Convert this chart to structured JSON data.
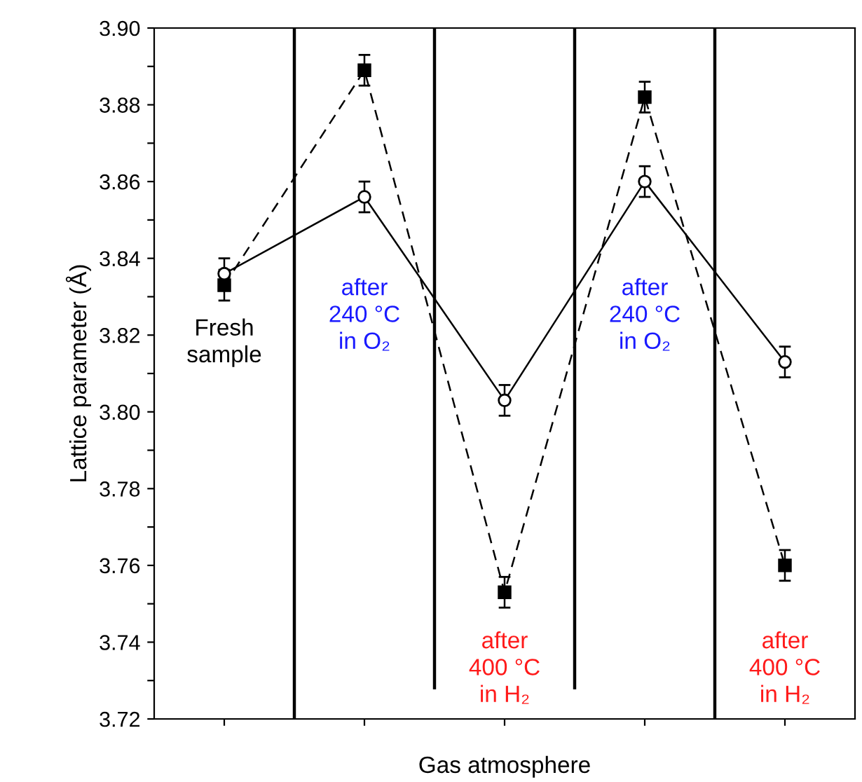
{
  "chart_data": {
    "type": "line",
    "xlabel": "Gas atmosphere",
    "ylabel": "Lattice parameter (Å)",
    "categories": [
      null,
      null,
      null,
      null,
      null
    ],
    "series": [
      {
        "color": "#000000",
        "marker": "square",
        "line_style": "dashed",
        "values": [
          3.833,
          3.889,
          3.753,
          3.882,
          3.76
        ],
        "errors": [
          0.004,
          0.004,
          0.004,
          0.004,
          0.004
        ]
      },
      {
        "color": "#000000",
        "marker": "circle",
        "line_style": "solid",
        "values": [
          3.836,
          3.856,
          3.803,
          3.86,
          3.813
        ],
        "errors": [
          0.004,
          0.004,
          0.004,
          0.004,
          0.004
        ]
      }
    ],
    "ylim": [
      3.72,
      3.9
    ],
    "yticks": [
      {
        "value": 3.72,
        "label": "3.72"
      },
      {
        "value": 3.73,
        "label": null
      },
      {
        "value": 3.74,
        "label": "3.74"
      },
      {
        "value": 3.75,
        "label": null
      },
      {
        "value": 3.76,
        "label": "3.76"
      },
      {
        "value": 3.77,
        "label": null
      },
      {
        "value": 3.78,
        "label": "3.78"
      },
      {
        "value": 3.79,
        "label": null
      },
      {
        "value": 3.8,
        "label": "3.80"
      },
      {
        "value": 3.81,
        "label": null
      },
      {
        "value": 3.82,
        "label": "3.82"
      },
      {
        "value": 3.83,
        "label": null
      },
      {
        "value": 3.84,
        "label": "3.84"
      },
      {
        "value": 3.85,
        "label": null
      },
      {
        "value": 3.86,
        "label": "3.86"
      },
      {
        "value": 3.87,
        "label": null
      },
      {
        "value": 3.88,
        "label": "3.88"
      },
      {
        "value": 3.89,
        "label": null
      },
      {
        "value": 3.9,
        "label": "3.90"
      }
    ],
    "annotations": [
      "Fresh\nsample",
      "after\n240 °C\nin O₂",
      "after\n400 °C\nin H₂",
      "after\n240 °C\nin O₂",
      "after\n400 °C\nin H₂"
    ],
    "grid": false,
    "legend": false
  }
}
